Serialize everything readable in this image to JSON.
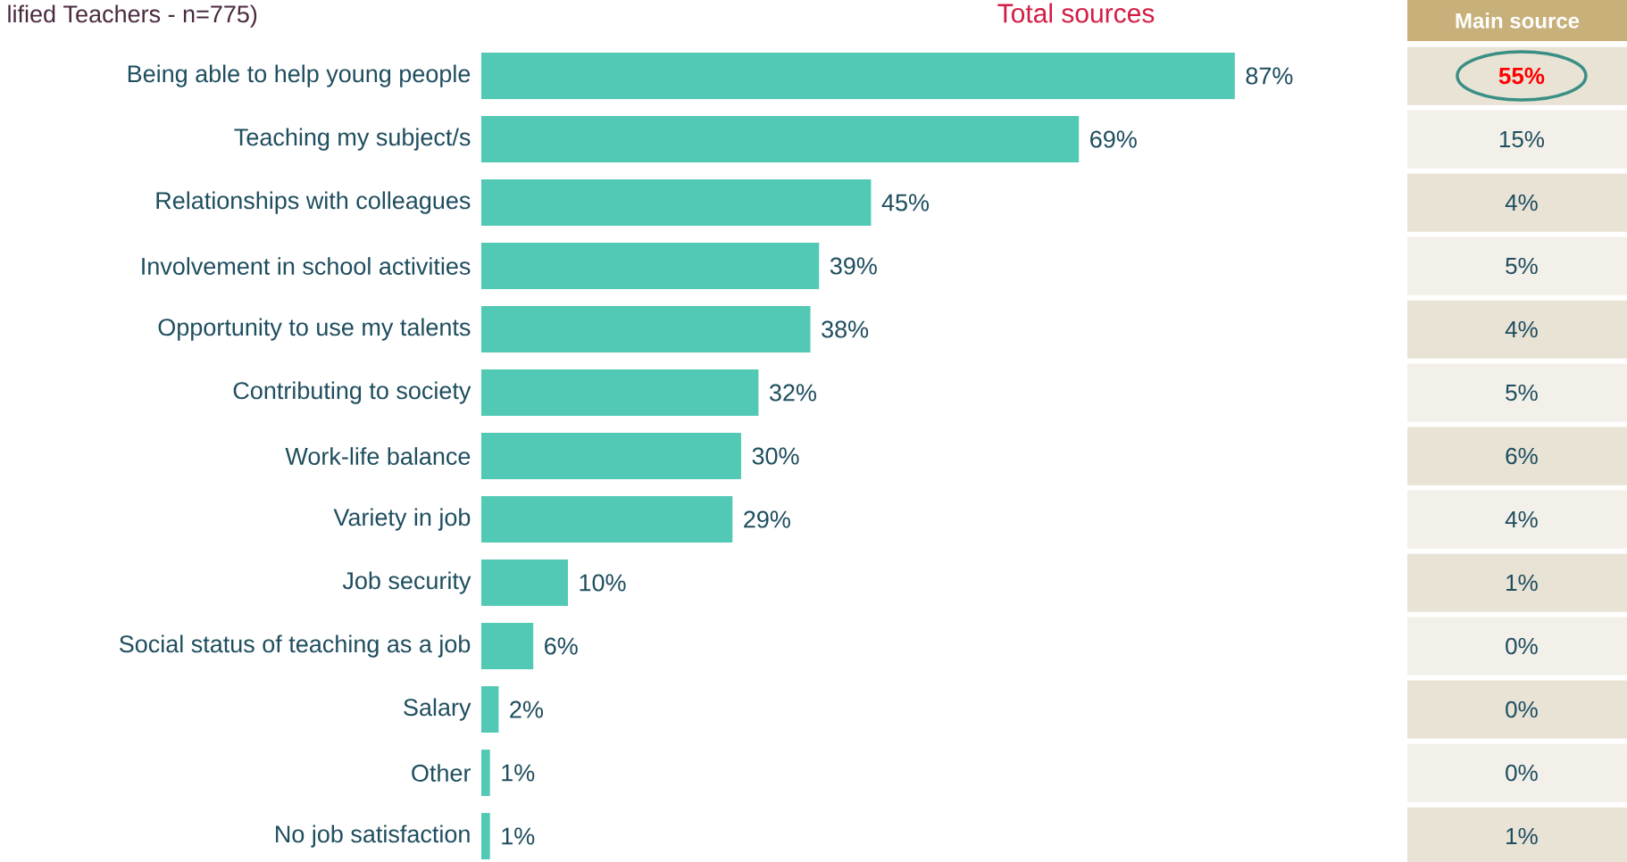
{
  "chart_data": [
    {
      "type": "bar",
      "orientation": "horizontal",
      "title": "Total sources",
      "annotations": [
        "lified Teachers - n=775)"
      ],
      "categories": [
        "Being able to help young people",
        "Teaching my subject/s",
        "Relationships with colleagues",
        "Involvement in school activities",
        "Opportunity to use my talents",
        "Contributing to society",
        "Work-life balance",
        "Variety in job",
        "Job security",
        "Social status of teaching as a job",
        "Salary",
        "Other",
        "No job satisfaction"
      ],
      "values": [
        87,
        69,
        45,
        39,
        38,
        32,
        30,
        29,
        10,
        6,
        2,
        1,
        1
      ],
      "value_labels": [
        "87%",
        "69%",
        "45%",
        "39%",
        "38%",
        "32%",
        "30%",
        "29%",
        "10%",
        "6%",
        "2%",
        "1%",
        "1%"
      ],
      "color": "#52c9b4"
    },
    {
      "type": "other",
      "title": "Main source",
      "categories": [
        null,
        null,
        null,
        null,
        null,
        null,
        null,
        null,
        null,
        null,
        null,
        null,
        null
      ],
      "value_labels": [
        "**55%**",
        "15%",
        "4%",
        "5%",
        "4%",
        "5%",
        "6%",
        "4%",
        "1%",
        "0%",
        "0%",
        "0%",
        "1%"
      ],
      "colors": [
        "#ff0000",
        "#1f4e5f",
        "#1f4e5f",
        "#1f4e5f",
        "#1f4e5f",
        "#1f4e5f",
        "#1f4e5f",
        "#1f4e5f",
        "#1f4e5f",
        "#1f4e5f",
        "#1f4e5f",
        "#1f4e5f",
        "#1f4e5f"
      ]
    }
  ]
}
